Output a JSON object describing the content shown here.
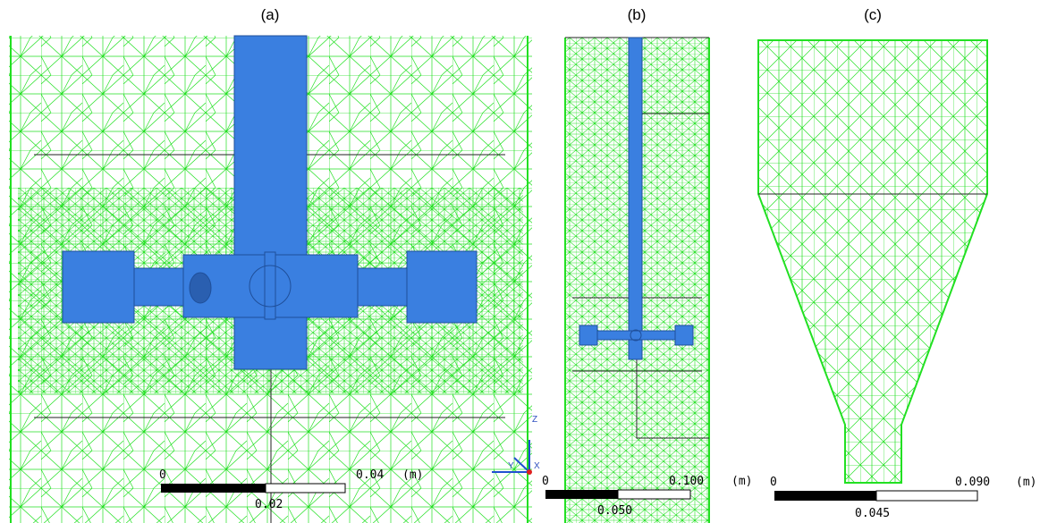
{
  "panels": [
    {
      "label": "(a)",
      "scale": {
        "start": "0",
        "end": "0.04",
        "unit": "(m)",
        "mid": "0.02"
      },
      "axes": {
        "z": "Z",
        "x": "X",
        "y": "Y"
      }
    },
    {
      "label": "(b)",
      "scale": {
        "start": "0",
        "end": "0.100",
        "unit": "(m)",
        "mid": "0.050"
      }
    },
    {
      "label": "(c)",
      "scale": {
        "start": "0",
        "end": "0.090",
        "unit": "(m)",
        "mid": "0.045"
      }
    }
  ]
}
